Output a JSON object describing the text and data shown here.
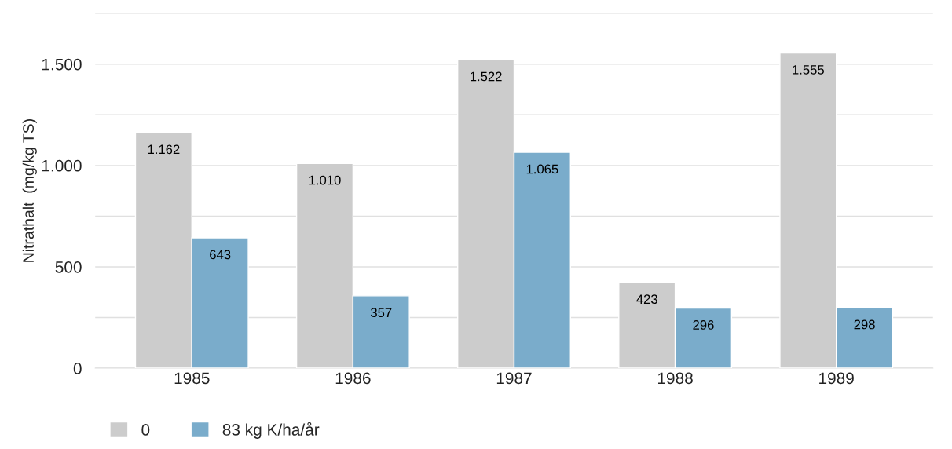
{
  "chart_data": {
    "type": "bar",
    "ylabel": "Nitrathalt  (mg/kg TS)",
    "categories": [
      "1985",
      "1986",
      "1987",
      "1988",
      "1989"
    ],
    "series": [
      {
        "name": "0",
        "color": "#cccccc",
        "values": [
          1162,
          1010,
          1522,
          423,
          1555
        ],
        "value_labels": [
          "1.162",
          "1.010",
          "1.522",
          "423",
          "1.555"
        ]
      },
      {
        "name": "83 kg K/ha/år",
        "color": "#7aaccb",
        "values": [
          643,
          357,
          1065,
          296,
          298
        ],
        "value_labels": [
          "643",
          "357",
          "1.065",
          "296",
          "298"
        ]
      }
    ],
    "ylim": [
      0,
      1750
    ],
    "yticks": [
      0,
      {
        "value": 250,
        "label": null
      },
      {
        "value": 500,
        "label": "500"
      },
      {
        "value": 750,
        "label": null
      },
      {
        "value": 1000,
        "label": "1.000"
      },
      {
        "value": 1250,
        "label": null
      },
      {
        "value": 1500,
        "label": "1.500"
      },
      {
        "value": 1750,
        "label": null
      }
    ],
    "grid": "y",
    "legend": "bottom left"
  }
}
